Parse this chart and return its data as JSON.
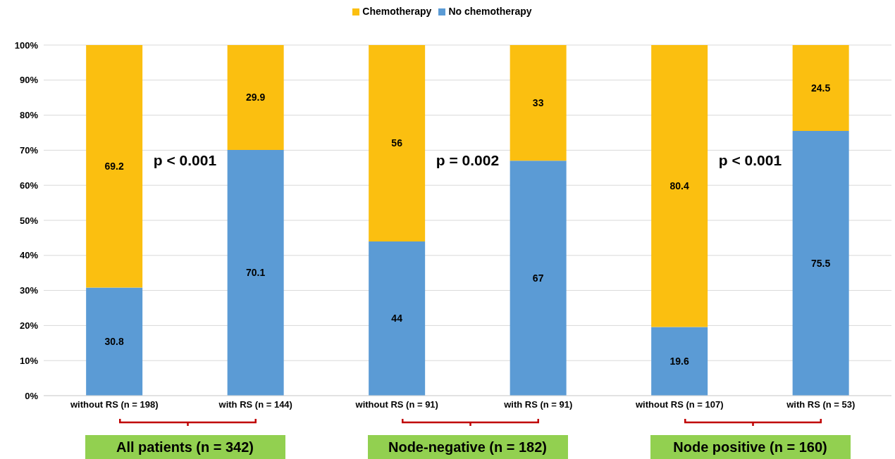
{
  "chart_data": {
    "type": "bar",
    "stacked": true,
    "categories": [
      "without RS (n = 198)",
      "with RS (n = 144)",
      "without RS (n = 91)",
      "with RS (n = 91)",
      "without RS (n = 107)",
      "with RS (n = 53)"
    ],
    "series": [
      {
        "name": "No chemotherapy",
        "color": "#5b9bd5",
        "values": [
          30.8,
          70.1,
          44,
          67,
          19.6,
          75.5
        ]
      },
      {
        "name": "Chemotherapy",
        "color": "#fbbf10",
        "values": [
          69.2,
          29.9,
          56,
          33,
          80.4,
          24.5
        ]
      }
    ],
    "ylim": [
      0,
      100
    ],
    "yticks": [
      {
        "value": 0,
        "label": "0%"
      },
      {
        "value": 10,
        "label": "10%"
      },
      {
        "value": 20,
        "label": "20%"
      },
      {
        "value": 30,
        "label": "30%"
      },
      {
        "value": 40,
        "label": "40%"
      },
      {
        "value": 50,
        "label": "50%"
      },
      {
        "value": 60,
        "label": "60%"
      },
      {
        "value": 70,
        "label": "70%"
      },
      {
        "value": 80,
        "label": "80%"
      },
      {
        "value": 90,
        "label": "90%"
      },
      {
        "value": 100,
        "label": "100%"
      }
    ],
    "grid": "y",
    "legend": "top",
    "data_labels": true,
    "annotations": [
      "p < 0.001",
      "p = 0.002",
      "p < 0.001",
      "All patients (n = 342)",
      "Node-negative (n = 182)",
      "Node positive (n = 160)"
    ]
  }
}
